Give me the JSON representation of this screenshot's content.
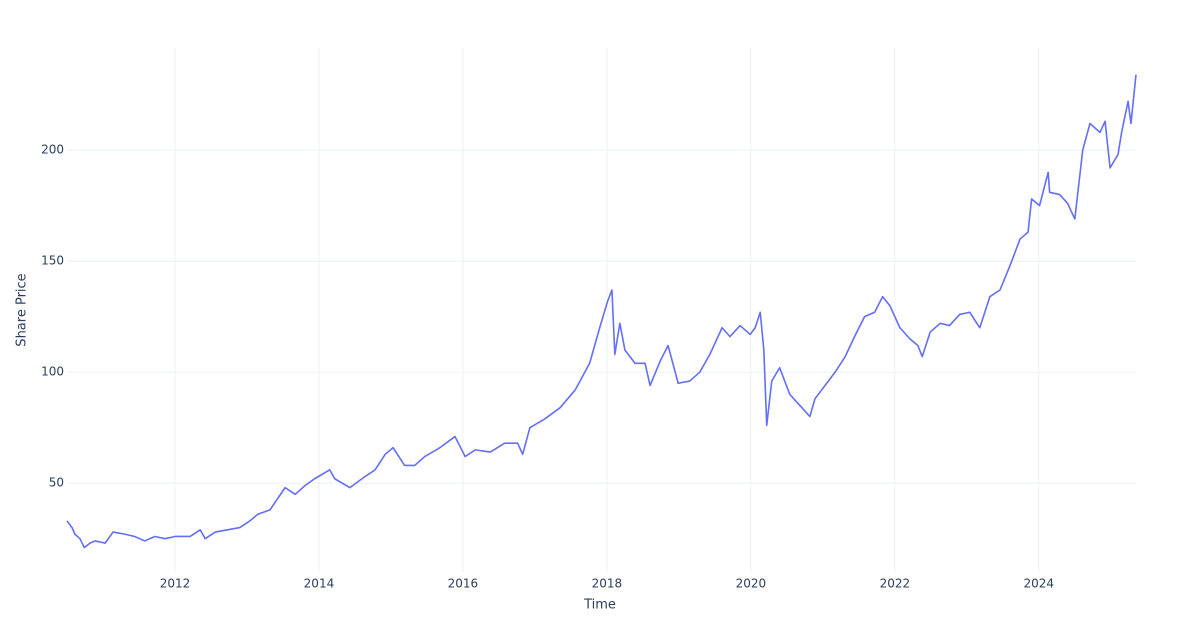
{
  "chart_data": {
    "type": "line",
    "x_title": "Time",
    "y_title": "Share Price",
    "xlim": [
      2010.5,
      2025.35
    ],
    "ylim": [
      10,
      246
    ],
    "xticks": [
      2012,
      2014,
      2016,
      2018,
      2020,
      2022,
      2024
    ],
    "yticks": [
      50,
      100,
      150,
      200
    ],
    "grid": true,
    "series": [
      {
        "color": "#636efa",
        "x": [
          2010.5,
          2010.57,
          2010.61,
          2010.68,
          2010.74,
          2010.82,
          2010.89,
          2011.03,
          2011.14,
          2011.31,
          2011.44,
          2011.58,
          2011.72,
          2011.86,
          2012.0,
          2012.21,
          2012.35,
          2012.42,
          2012.56,
          2012.9,
          2013.04,
          2013.15,
          2013.32,
          2013.53,
          2013.67,
          2013.81,
          2013.94,
          2014.15,
          2014.22,
          2014.43,
          2014.64,
          2014.78,
          2014.92,
          2015.03,
          2015.19,
          2015.33,
          2015.47,
          2015.68,
          2015.89,
          2016.03,
          2016.17,
          2016.38,
          2016.58,
          2016.76,
          2016.83,
          2016.93,
          2017.14,
          2017.35,
          2017.56,
          2017.76,
          2017.9,
          2018.01,
          2018.07,
          2018.11,
          2018.18,
          2018.25,
          2018.39,
          2018.53,
          2018.6,
          2018.74,
          2018.85,
          2018.99,
          2019.15,
          2019.29,
          2019.43,
          2019.6,
          2019.71,
          2019.85,
          2019.99,
          2020.06,
          2020.13,
          2020.18,
          2020.22,
          2020.29,
          2020.4,
          2020.54,
          2020.68,
          2020.82,
          2020.89,
          2021.03,
          2021.17,
          2021.31,
          2021.44,
          2021.58,
          2021.72,
          2021.83,
          2021.93,
          2022.07,
          2022.21,
          2022.32,
          2022.38,
          2022.49,
          2022.63,
          2022.76,
          2022.9,
          2023.04,
          2023.18,
          2023.32,
          2023.46,
          2023.6,
          2023.74,
          2023.85,
          2023.9,
          2024.01,
          2024.13,
          2024.15,
          2024.29,
          2024.4,
          2024.5,
          2024.61,
          2024.71,
          2024.85,
          2024.92,
          2024.99,
          2025.1,
          2025.15,
          2025.24,
          2025.28,
          2025.35
        ],
        "values": [
          33,
          30,
          27,
          25,
          21,
          23,
          24,
          23,
          28,
          27,
          26,
          24,
          26,
          25,
          26,
          26,
          29,
          25,
          28,
          30,
          33,
          36,
          38,
          48,
          45,
          49,
          52,
          56,
          52,
          48,
          53,
          56,
          63,
          66,
          58,
          58,
          62,
          66,
          71,
          62,
          65,
          64,
          68,
          68,
          63,
          75,
          79,
          84,
          92,
          104,
          120,
          132,
          137,
          108,
          122,
          110,
          104,
          104,
          94,
          105,
          112,
          95,
          96,
          100,
          108,
          120,
          116,
          121,
          117,
          120,
          127,
          110,
          76,
          96,
          102,
          90,
          85,
          80,
          88,
          94,
          100,
          107,
          116,
          125,
          127,
          134,
          130,
          120,
          115,
          112,
          107,
          118,
          122,
          121,
          126,
          127,
          120,
          134,
          137,
          148,
          160,
          163,
          178,
          175,
          190,
          181,
          180,
          176,
          169,
          200,
          212,
          208,
          213,
          192,
          198,
          208,
          222,
          212,
          234
        ]
      }
    ]
  }
}
